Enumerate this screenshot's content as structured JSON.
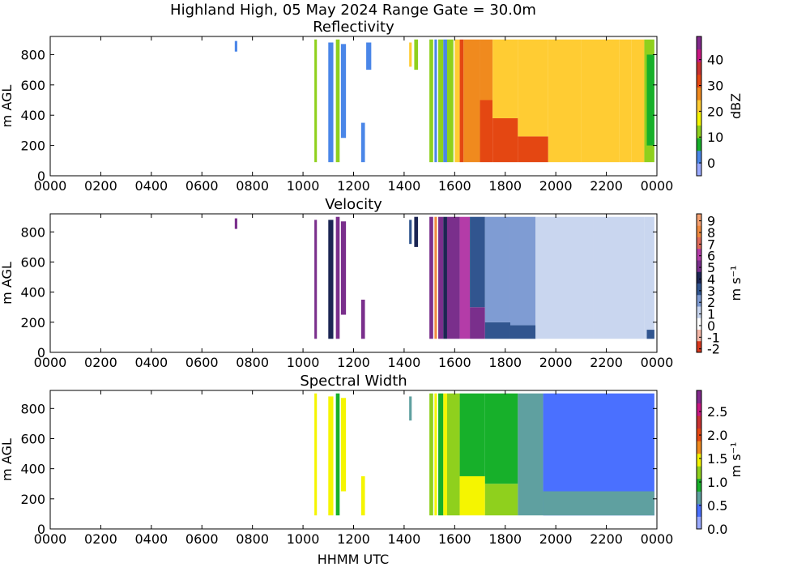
{
  "figure": {
    "suptitle": "Highland High, 05 May 2024 Range Gate = 30.0m",
    "xlabel": "HHMM UTC"
  },
  "chart_data": [
    {
      "type": "heatmap",
      "title": "Reflectivity",
      "ylabel": "m AGL",
      "x_ticks": [
        "0000",
        "0200",
        "0400",
        "0600",
        "0800",
        "1000",
        "1200",
        "1400",
        "1600",
        "1800",
        "2000",
        "2200",
        "0000"
      ],
      "y_ticks": [
        0,
        200,
        400,
        600,
        800
      ],
      "xlim_hours": [
        0,
        24
      ],
      "ylim": [
        0,
        920
      ],
      "colorbar": {
        "label": "dBZ",
        "range": [
          -5,
          49
        ],
        "ticks": [
          0,
          10,
          20,
          30,
          40
        ],
        "colors": [
          "#9aaaff",
          "#4a86e8",
          "#17b02a",
          "#8fd01d",
          "#f5f500",
          "#ffcc33",
          "#f08a1e",
          "#e44712",
          "#c83232",
          "#c81882",
          "#822a8c"
        ]
      },
      "cells": [
        {
          "t0": 7.3,
          "t1": 7.4,
          "h0": 820,
          "h1": 890,
          "v": 2
        },
        {
          "t0": 10.45,
          "t1": 10.55,
          "h0": 90,
          "h1": 900,
          "v": 12
        },
        {
          "t0": 11.0,
          "t1": 11.2,
          "h0": 90,
          "h1": 880,
          "v": 4
        },
        {
          "t0": 11.3,
          "t1": 11.45,
          "h0": 90,
          "h1": 900,
          "v": 12
        },
        {
          "t0": 11.5,
          "t1": 11.7,
          "h0": 250,
          "h1": 870,
          "v": 2
        },
        {
          "t0": 12.3,
          "t1": 12.45,
          "h0": 90,
          "h1": 350,
          "v": 3
        },
        {
          "t0": 12.5,
          "t1": 12.7,
          "h0": 700,
          "h1": 880,
          "v": 3
        },
        {
          "t0": 14.2,
          "t1": 14.3,
          "h0": 720,
          "h1": 880,
          "v": 20
        },
        {
          "t0": 14.4,
          "t1": 14.55,
          "h0": 700,
          "h1": 900,
          "v": 12
        },
        {
          "t0": 15.0,
          "t1": 15.15,
          "h0": 90,
          "h1": 900,
          "v": 12
        },
        {
          "t0": 15.2,
          "t1": 15.3,
          "h0": 90,
          "h1": 900,
          "v": 3
        },
        {
          "t0": 15.35,
          "t1": 15.55,
          "h0": 90,
          "h1": 900,
          "v": 13
        },
        {
          "t0": 15.55,
          "t1": 15.7,
          "h0": 90,
          "h1": 900,
          "v": 2
        },
        {
          "t0": 15.7,
          "t1": 15.95,
          "h0": 90,
          "h1": 900,
          "v": 12
        },
        {
          "t0": 16.0,
          "t1": 16.2,
          "h0": 90,
          "h1": 900,
          "v": 20
        },
        {
          "t0": 16.2,
          "t1": 16.35,
          "h0": 90,
          "h1": 900,
          "v": 33
        },
        {
          "t0": 16.35,
          "t1": 17.0,
          "h0": 90,
          "h1": 900,
          "v": 28
        },
        {
          "t0": 17.0,
          "t1": 17.5,
          "h0": 90,
          "h1": 500,
          "v": 33
        },
        {
          "t0": 17.0,
          "t1": 17.5,
          "h0": 500,
          "h1": 900,
          "v": 25
        },
        {
          "t0": 17.5,
          "t1": 18.5,
          "h0": 90,
          "h1": 380,
          "v": 33
        },
        {
          "t0": 17.5,
          "t1": 18.5,
          "h0": 380,
          "h1": 900,
          "v": 24
        },
        {
          "t0": 18.5,
          "t1": 19.7,
          "h0": 90,
          "h1": 260,
          "v": 32
        },
        {
          "t0": 18.5,
          "t1": 19.7,
          "h0": 260,
          "h1": 900,
          "v": 24
        },
        {
          "t0": 19.7,
          "t1": 21.0,
          "h0": 90,
          "h1": 900,
          "v": 24
        },
        {
          "t0": 21.0,
          "t1": 22.5,
          "h0": 90,
          "h1": 900,
          "v": 20
        },
        {
          "t0": 22.5,
          "t1": 23.0,
          "h0": 90,
          "h1": 900,
          "v": 24
        },
        {
          "t0": 23.0,
          "t1": 23.5,
          "h0": 90,
          "h1": 900,
          "v": 20
        },
        {
          "t0": 23.5,
          "t1": 23.9,
          "h0": 90,
          "h1": 900,
          "v": 12
        },
        {
          "t0": 23.6,
          "t1": 23.9,
          "h0": 200,
          "h1": 800,
          "v": 8
        }
      ]
    },
    {
      "type": "heatmap",
      "title": "Velocity",
      "ylabel": "m s⁻¹",
      "ylabel_left": "m AGL",
      "x_ticks": [
        "0000",
        "0200",
        "0400",
        "0600",
        "0800",
        "1000",
        "1200",
        "1400",
        "1600",
        "1800",
        "2000",
        "2200",
        "0000"
      ],
      "y_ticks": [
        0,
        200,
        400,
        600,
        800
      ],
      "xlim_hours": [
        0,
        24
      ],
      "ylim": [
        0,
        920
      ],
      "colorbar": {
        "label": "m s⁻¹",
        "range": [
          -2.3,
          9.6
        ],
        "ticks": [
          -2,
          -1,
          0,
          1,
          2,
          3,
          4,
          5,
          6,
          7,
          8,
          9
        ],
        "colors": [
          "#d9381e",
          "#f5b8a8",
          "#ffffff",
          "#c9d6ef",
          "#7f9cd3",
          "#31558f",
          "#1b2553",
          "#7a2f8c",
          "#b43ca8",
          "#e06a5a",
          "#f08a40",
          "#f5a070"
        ]
      },
      "cells": [
        {
          "t0": 7.3,
          "t1": 7.4,
          "h0": 820,
          "h1": 890,
          "v": 5
        },
        {
          "t0": 10.45,
          "t1": 10.55,
          "h0": 90,
          "h1": 880,
          "v": 5.5
        },
        {
          "t0": 11.0,
          "t1": 11.2,
          "h0": 90,
          "h1": 880,
          "v": 4
        },
        {
          "t0": 11.3,
          "t1": 11.45,
          "h0": 90,
          "h1": 900,
          "v": 5.5
        },
        {
          "t0": 11.5,
          "t1": 11.7,
          "h0": 250,
          "h1": 870,
          "v": 5
        },
        {
          "t0": 12.3,
          "t1": 12.45,
          "h0": 90,
          "h1": 350,
          "v": 5.5
        },
        {
          "t0": 14.2,
          "t1": 14.3,
          "h0": 720,
          "h1": 880,
          "v": 3
        },
        {
          "t0": 14.4,
          "t1": 14.55,
          "h0": 700,
          "h1": 900,
          "v": 4
        },
        {
          "t0": 15.0,
          "t1": 15.15,
          "h0": 90,
          "h1": 900,
          "v": 5.5
        },
        {
          "t0": 15.2,
          "t1": 15.3,
          "h0": 90,
          "h1": 900,
          "v": 8
        },
        {
          "t0": 15.35,
          "t1": 15.55,
          "h0": 90,
          "h1": 900,
          "v": 5.5
        },
        {
          "t0": 15.55,
          "t1": 15.7,
          "h0": 90,
          "h1": 900,
          "v": 4
        },
        {
          "t0": 15.7,
          "t1": 16.2,
          "h0": 90,
          "h1": 900,
          "v": 5.5
        },
        {
          "t0": 16.2,
          "t1": 16.6,
          "h0": 90,
          "h1": 900,
          "v": 6.5
        },
        {
          "t0": 16.6,
          "t1": 17.2,
          "h0": 90,
          "h1": 300,
          "v": 5.5
        },
        {
          "t0": 16.6,
          "t1": 17.2,
          "h0": 300,
          "h1": 900,
          "v": 3.5
        },
        {
          "t0": 17.2,
          "t1": 18.2,
          "h0": 90,
          "h1": 200,
          "v": 3.5
        },
        {
          "t0": 17.2,
          "t1": 18.2,
          "h0": 200,
          "h1": 900,
          "v": 2.5
        },
        {
          "t0": 18.2,
          "t1": 19.2,
          "h0": 90,
          "h1": 180,
          "v": 3
        },
        {
          "t0": 18.2,
          "t1": 19.2,
          "h0": 180,
          "h1": 900,
          "v": 1.8
        },
        {
          "t0": 19.2,
          "t1": 21.5,
          "h0": 90,
          "h1": 900,
          "v": 1.2
        },
        {
          "t0": 21.5,
          "t1": 23.5,
          "h0": 90,
          "h1": 900,
          "v": 1.0
        },
        {
          "t0": 23.5,
          "t1": 23.9,
          "h0": 90,
          "h1": 900,
          "v": 1.6
        },
        {
          "t0": 23.6,
          "t1": 23.9,
          "h0": 90,
          "h1": 150,
          "v": 3
        }
      ]
    },
    {
      "type": "heatmap",
      "title": "Spectral Width",
      "ylabel": "m s⁻¹",
      "ylabel_left": "m AGL",
      "x_ticks": [
        "0000",
        "0200",
        "0400",
        "0600",
        "0800",
        "1000",
        "1200",
        "1400",
        "1600",
        "1800",
        "2000",
        "2200",
        "0000"
      ],
      "y_ticks": [
        0,
        200,
        400,
        600,
        800
      ],
      "xlim_hours": [
        0,
        24
      ],
      "ylim": [
        0,
        920
      ],
      "colorbar": {
        "label": "m s⁻¹",
        "range": [
          0.0,
          2.95
        ],
        "ticks": [
          0.0,
          0.5,
          1.0,
          1.5,
          2.0,
          2.5
        ],
        "ticklabels": [
          "0.0",
          "0.5",
          "1.0",
          "1.5",
          "2.0",
          "2.5"
        ],
        "colors": [
          "#9aaaff",
          "#4a70ff",
          "#5fa0a0",
          "#17b02a",
          "#8fd01d",
          "#f5f500",
          "#f08a1e",
          "#e44712",
          "#c83232",
          "#c81882",
          "#822a8c"
        ]
      },
      "cells": [
        {
          "t0": 10.45,
          "t1": 10.55,
          "h0": 90,
          "h1": 900,
          "v": 1.4
        },
        {
          "t0": 11.0,
          "t1": 11.2,
          "h0": 90,
          "h1": 880,
          "v": 1.6
        },
        {
          "t0": 11.3,
          "t1": 11.45,
          "h0": 90,
          "h1": 900,
          "v": 1.0
        },
        {
          "t0": 11.5,
          "t1": 11.7,
          "h0": 250,
          "h1": 870,
          "v": 1.5
        },
        {
          "t0": 12.3,
          "t1": 12.45,
          "h0": 90,
          "h1": 350,
          "v": 1.5
        },
        {
          "t0": 14.2,
          "t1": 14.3,
          "h0": 720,
          "h1": 880,
          "v": 0.8
        },
        {
          "t0": 15.0,
          "t1": 15.15,
          "h0": 90,
          "h1": 900,
          "v": 1.2
        },
        {
          "t0": 15.2,
          "t1": 15.3,
          "h0": 90,
          "h1": 900,
          "v": 1.5
        },
        {
          "t0": 15.35,
          "t1": 15.55,
          "h0": 90,
          "h1": 900,
          "v": 1.0
        },
        {
          "t0": 15.55,
          "t1": 15.7,
          "h0": 90,
          "h1": 900,
          "v": 1.4
        },
        {
          "t0": 15.7,
          "t1": 16.2,
          "h0": 90,
          "h1": 900,
          "v": 1.1
        },
        {
          "t0": 16.2,
          "t1": 17.2,
          "h0": 90,
          "h1": 350,
          "v": 1.5
        },
        {
          "t0": 16.2,
          "t1": 17.2,
          "h0": 350,
          "h1": 900,
          "v": 1.0
        },
        {
          "t0": 17.2,
          "t1": 18.5,
          "h0": 90,
          "h1": 300,
          "v": 1.2
        },
        {
          "t0": 17.2,
          "t1": 18.5,
          "h0": 300,
          "h1": 900,
          "v": 0.9
        },
        {
          "t0": 18.5,
          "t1": 19.5,
          "h0": 90,
          "h1": 900,
          "v": 0.75
        },
        {
          "t0": 19.5,
          "t1": 23.9,
          "h0": 90,
          "h1": 900,
          "v": 0.45
        },
        {
          "t0": 19.5,
          "t1": 23.9,
          "h0": 90,
          "h1": 250,
          "v": 0.65
        }
      ]
    }
  ]
}
